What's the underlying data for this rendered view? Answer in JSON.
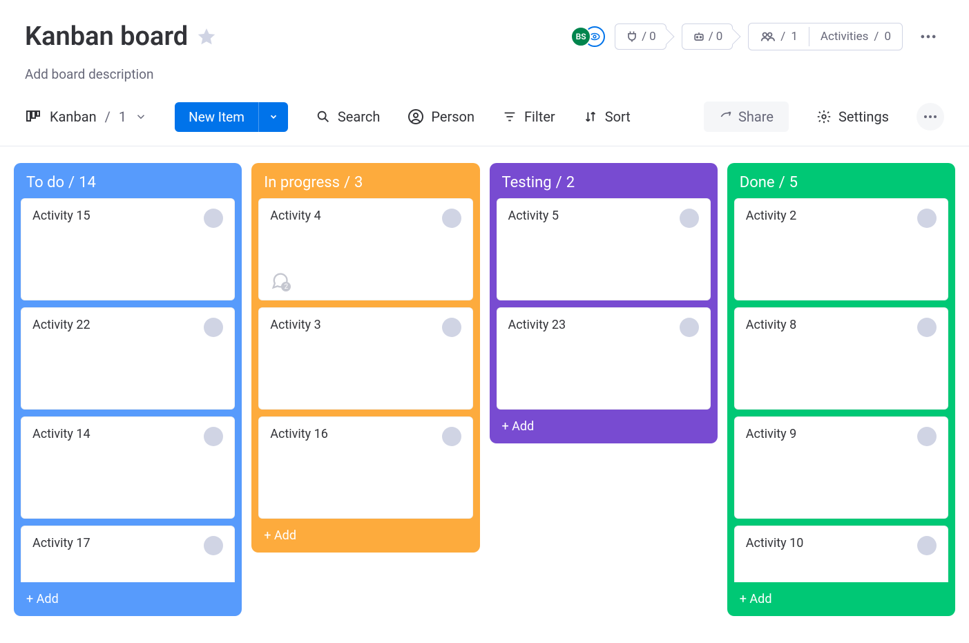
{
  "board": {
    "title": "Kanban board",
    "description_placeholder": "Add board description",
    "avatar_initials": "BS"
  },
  "top_pills": {
    "integrations_count": "0",
    "automations_count": "0",
    "members_count": "1",
    "activities_label": "Activities",
    "activities_count": "0"
  },
  "toolbar": {
    "view_label": "Kanban",
    "view_count": "1",
    "new_item_label": "New Item",
    "search_label": "Search",
    "person_label": "Person",
    "filter_label": "Filter",
    "sort_label": "Sort",
    "share_label": "Share",
    "settings_label": "Settings"
  },
  "colors": {
    "primary": "#0073ea",
    "todo": "#579bfc",
    "inprogress": "#fdab3d",
    "testing": "#784bd1",
    "done": "#00c875"
  },
  "columns": [
    {
      "id": "todo",
      "title": "To do",
      "count": "14",
      "color": "#579bfc",
      "add_label": "+ Add",
      "cards": [
        {
          "title": "Activity 15",
          "comments": null
        },
        {
          "title": "Activity 22",
          "comments": null
        },
        {
          "title": "Activity 14",
          "comments": null
        },
        {
          "title": "Activity 17",
          "comments": null
        }
      ]
    },
    {
      "id": "inprogress",
      "title": "In progress",
      "count": "3",
      "color": "#fdab3d",
      "add_label": "+ Add",
      "cards": [
        {
          "title": "Activity 4",
          "comments": "2"
        },
        {
          "title": "Activity 3",
          "comments": null
        },
        {
          "title": "Activity 16",
          "comments": null
        }
      ]
    },
    {
      "id": "testing",
      "title": "Testing",
      "count": "2",
      "color": "#784bd1",
      "add_label": "+ Add",
      "cards": [
        {
          "title": "Activity 5",
          "comments": null
        },
        {
          "title": "Activity 23",
          "comments": null
        }
      ]
    },
    {
      "id": "done",
      "title": "Done",
      "count": "5",
      "color": "#00c875",
      "add_label": "+ Add",
      "cards": [
        {
          "title": "Activity 2",
          "comments": null
        },
        {
          "title": "Activity 8",
          "comments": null
        },
        {
          "title": "Activity 9",
          "comments": null
        },
        {
          "title": "Activity 10",
          "comments": null
        }
      ]
    }
  ]
}
